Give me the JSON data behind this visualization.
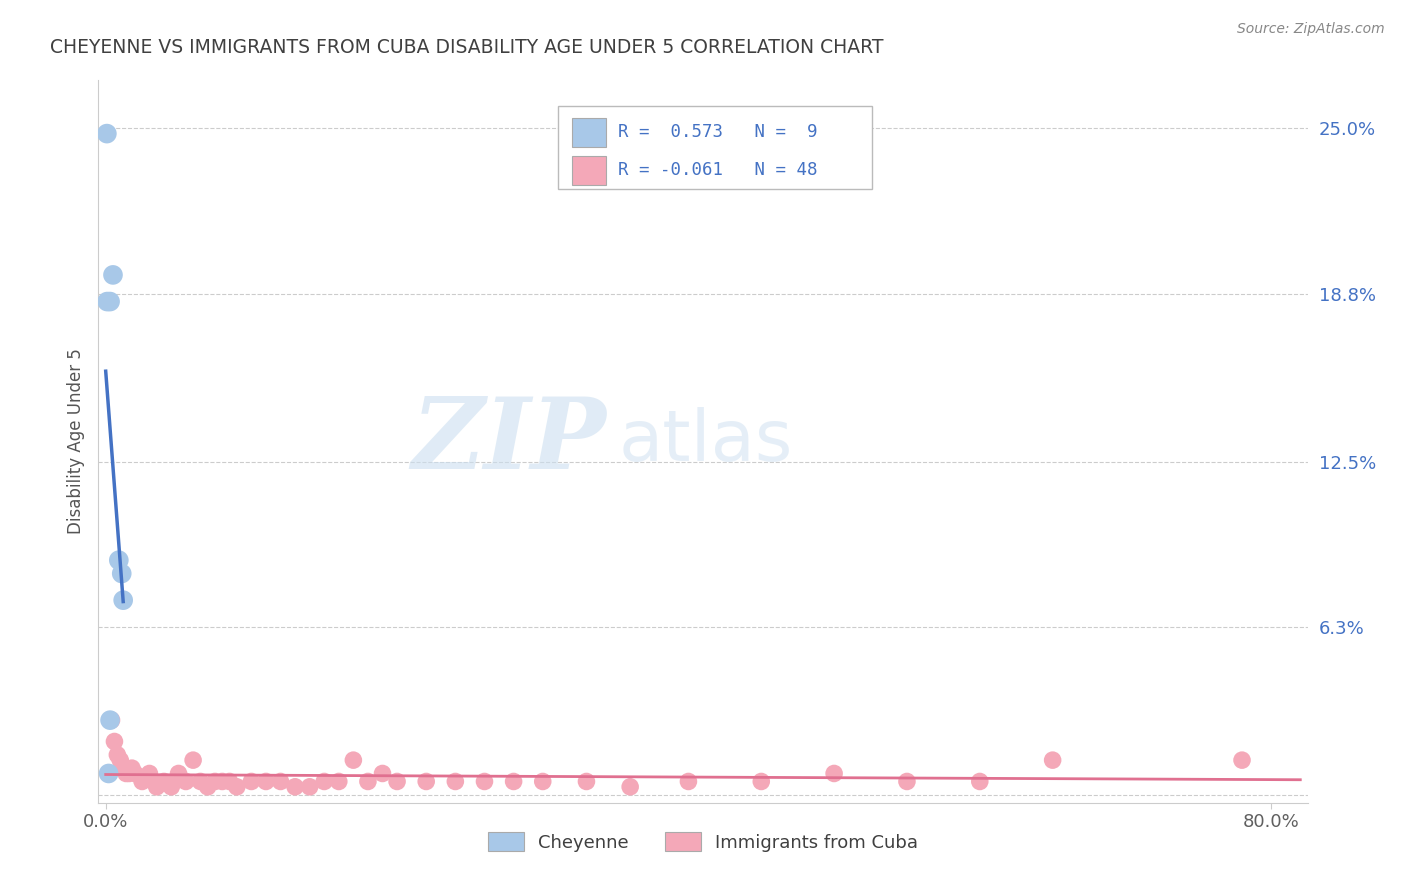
{
  "title": "CHEYENNE VS IMMIGRANTS FROM CUBA DISABILITY AGE UNDER 5 CORRELATION CHART",
  "source_text": "Source: ZipAtlas.com",
  "ylabel": "Disability Age Under 5",
  "watermark_zip": "ZIP",
  "watermark_atlas": "atlas",
  "cheyenne_color": "#a8c8e8",
  "cuba_color": "#f4a8b8",
  "cheyenne_line_color": "#4472c4",
  "cuba_line_color": "#e07090",
  "cheyenne_legend_color": "#a8c8e8",
  "cuba_legend_color": "#f4a8b8",
  "cheyenne_legend_label": "Cheyenne",
  "cuba_legend_label": "Immigrants from Cuba",
  "background_color": "#ffffff",
  "grid_color": "#cccccc",
  "title_color": "#404040",
  "right_tick_color": "#4472c4",
  "bottom_tick_color": "#606060",
  "cheyenne_points": [
    [
      0.0008,
      0.248
    ],
    [
      0.005,
      0.195
    ],
    [
      0.003,
      0.185
    ],
    [
      0.001,
      0.185
    ],
    [
      0.009,
      0.088
    ],
    [
      0.011,
      0.083
    ],
    [
      0.012,
      0.073
    ],
    [
      0.003,
      0.028
    ],
    [
      0.002,
      0.008
    ]
  ],
  "cuba_points": [
    [
      0.004,
      0.028
    ],
    [
      0.006,
      0.02
    ],
    [
      0.008,
      0.015
    ],
    [
      0.01,
      0.013
    ],
    [
      0.012,
      0.01
    ],
    [
      0.014,
      0.008
    ],
    [
      0.016,
      0.008
    ],
    [
      0.018,
      0.01
    ],
    [
      0.02,
      0.008
    ],
    [
      0.025,
      0.005
    ],
    [
      0.03,
      0.008
    ],
    [
      0.035,
      0.003
    ],
    [
      0.04,
      0.005
    ],
    [
      0.045,
      0.003
    ],
    [
      0.05,
      0.008
    ],
    [
      0.055,
      0.005
    ],
    [
      0.06,
      0.013
    ],
    [
      0.065,
      0.005
    ],
    [
      0.07,
      0.003
    ],
    [
      0.075,
      0.005
    ],
    [
      0.08,
      0.005
    ],
    [
      0.085,
      0.005
    ],
    [
      0.09,
      0.003
    ],
    [
      0.1,
      0.005
    ],
    [
      0.11,
      0.005
    ],
    [
      0.12,
      0.005
    ],
    [
      0.13,
      0.003
    ],
    [
      0.14,
      0.003
    ],
    [
      0.15,
      0.005
    ],
    [
      0.16,
      0.005
    ],
    [
      0.17,
      0.013
    ],
    [
      0.18,
      0.005
    ],
    [
      0.19,
      0.008
    ],
    [
      0.2,
      0.005
    ],
    [
      0.22,
      0.005
    ],
    [
      0.24,
      0.005
    ],
    [
      0.26,
      0.005
    ],
    [
      0.28,
      0.005
    ],
    [
      0.3,
      0.005
    ],
    [
      0.33,
      0.005
    ],
    [
      0.36,
      0.003
    ],
    [
      0.4,
      0.005
    ],
    [
      0.45,
      0.005
    ],
    [
      0.5,
      0.008
    ],
    [
      0.55,
      0.005
    ],
    [
      0.6,
      0.005
    ],
    [
      0.65,
      0.013
    ],
    [
      0.78,
      0.013
    ]
  ],
  "cheyenne_R": 0.573,
  "cuba_R": -0.061,
  "cheyenne_N": 9,
  "cuba_N": 48,
  "xlim": [
    0.0,
    0.82
  ],
  "ylim": [
    0.0,
    0.268
  ],
  "ytick_values": [
    0.0,
    0.063,
    0.125,
    0.188,
    0.25
  ],
  "ytick_labels": [
    "",
    "6.3%",
    "12.5%",
    "18.8%",
    "25.0%"
  ],
  "xtick_values": [
    0.0,
    0.8
  ],
  "xtick_labels": [
    "0.0%",
    "80.0%"
  ]
}
